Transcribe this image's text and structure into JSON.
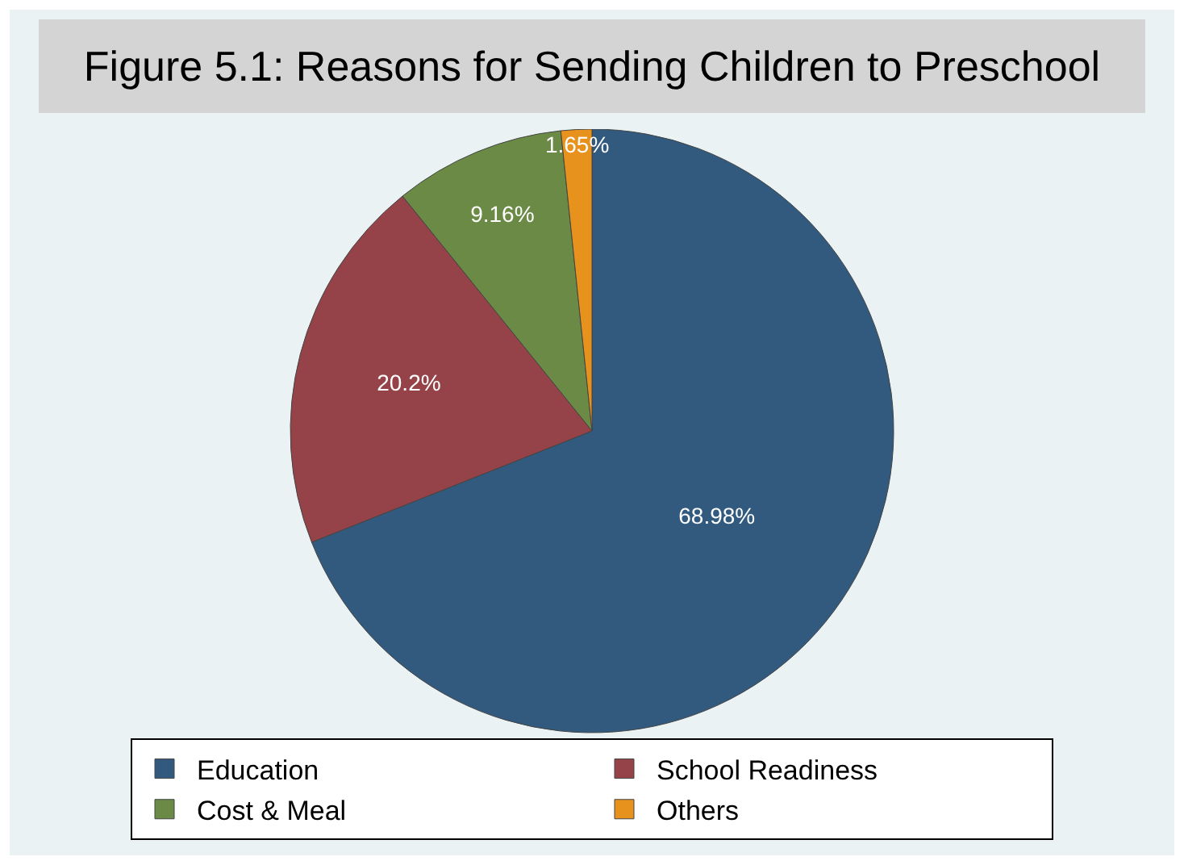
{
  "chart_data": {
    "type": "pie",
    "title": "Figure 5.1: Reasons for Sending Children to Preschool",
    "categories": [
      "Education",
      "School Readiness",
      "Cost & Meal",
      "Others"
    ],
    "values": [
      68.98,
      20.2,
      9.16,
      1.65
    ],
    "colors": [
      "#325a7f",
      "#954349",
      "#6a8a45",
      "#e8921e"
    ],
    "value_labels": [
      "68.98%",
      "20.2%",
      "9.16%",
      "1.65%"
    ],
    "legend": "bottom"
  }
}
